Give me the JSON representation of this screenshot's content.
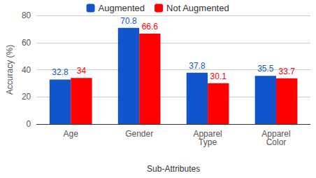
{
  "chart_data": {
    "type": "bar",
    "categories": [
      "Age",
      "Gender",
      "Apparel Type",
      "Apparel Color"
    ],
    "series": [
      {
        "name": "Augmented",
        "color": "#1155cc",
        "values": [
          32.8,
          70.8,
          37.8,
          35.5
        ]
      },
      {
        "name": "Not Augmented",
        "color": "#ff0000",
        "values": [
          34,
          66.6,
          30.1,
          33.7
        ]
      }
    ],
    "x_label": "Sub-Attributes",
    "y_label": "Accuracy (%)",
    "ylim": [
      0,
      80
    ],
    "yticks": [
      0,
      20,
      40,
      60,
      80
    ],
    "grid": true,
    "legend": "top",
    "data_labels": true
  }
}
